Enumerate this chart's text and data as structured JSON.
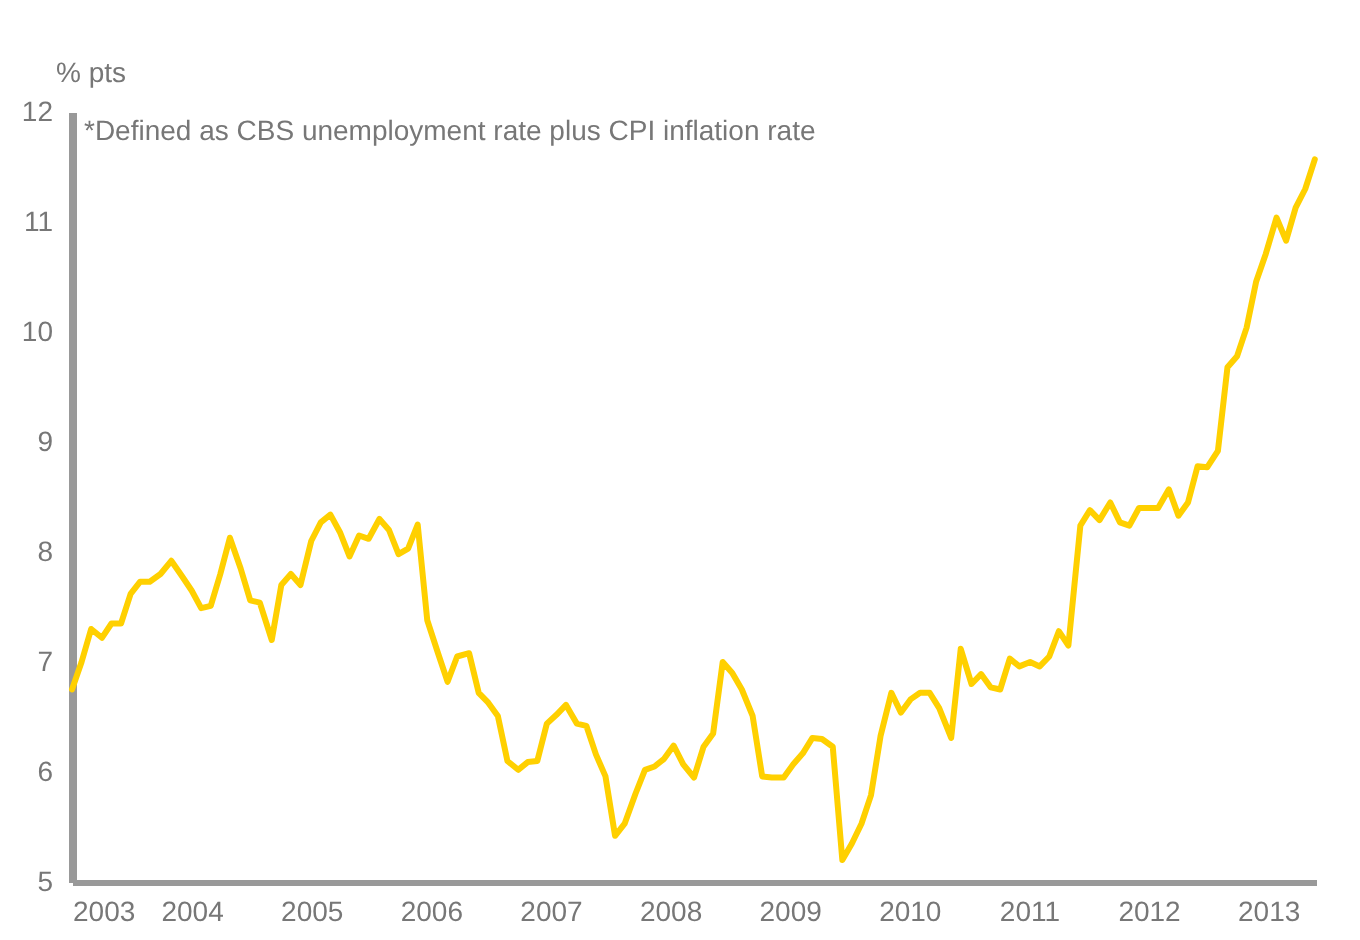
{
  "chart_data": {
    "type": "line",
    "ylabel": "% pts",
    "annotations": [
      "*Defined as CBS unemployment rate plus CPI inflation rate"
    ],
    "x": [
      2003.0,
      2003.08,
      2003.16,
      2003.25,
      2003.33,
      2003.41,
      2003.49,
      2003.57,
      2003.65,
      2003.74,
      2003.83,
      2003.92,
      2004.0,
      2004.08,
      2004.16,
      2004.24,
      2004.32,
      2004.41,
      2004.49,
      2004.57,
      2004.67,
      2004.75,
      2004.83,
      2004.91,
      2005.0,
      2005.08,
      2005.16,
      2005.24,
      2005.32,
      2005.4,
      2005.48,
      2005.57,
      2005.65,
      2005.73,
      2005.81,
      2005.89,
      2005.97,
      2006.06,
      2006.14,
      2006.22,
      2006.32,
      2006.4,
      2006.48,
      2006.56,
      2006.64,
      2006.73,
      2006.81,
      2006.89,
      2006.97,
      2007.05,
      2007.13,
      2007.22,
      2007.3,
      2007.38,
      2007.46,
      2007.54,
      2007.62,
      2007.71,
      2007.79,
      2007.87,
      2007.95,
      2008.03,
      2008.11,
      2008.2,
      2008.28,
      2008.36,
      2008.44,
      2008.52,
      2008.6,
      2008.69,
      2008.77,
      2008.85,
      2008.95,
      2009.03,
      2009.11,
      2009.19,
      2009.27,
      2009.36,
      2009.44,
      2009.52,
      2009.6,
      2009.68,
      2009.76,
      2009.85,
      2009.93,
      2010.01,
      2010.09,
      2010.17,
      2010.25,
      2010.35,
      2010.43,
      2010.52,
      2010.6,
      2010.68,
      2010.76,
      2010.84,
      2010.92,
      2011.01,
      2011.09,
      2011.17,
      2011.25,
      2011.33,
      2011.43,
      2011.51,
      2011.59,
      2011.68,
      2011.76,
      2011.84,
      2011.92,
      2012.0,
      2012.08,
      2012.17,
      2012.25,
      2012.33,
      2012.41,
      2012.49,
      2012.58,
      2012.66,
      2012.74,
      2012.82,
      2012.9,
      2012.98,
      2013.07,
      2013.15,
      2013.23,
      2013.31,
      2013.39
    ],
    "series": [
      {
        "color": "#ffd000",
        "values": [
          6.75,
          7.0,
          7.3,
          7.22,
          7.35,
          7.35,
          7.62,
          7.73,
          7.73,
          7.8,
          7.92,
          7.78,
          7.65,
          7.49,
          7.51,
          7.8,
          8.13,
          7.85,
          7.56,
          7.54,
          7.2,
          7.7,
          7.8,
          7.7,
          8.1,
          8.27,
          8.34,
          8.18,
          7.96,
          8.15,
          8.12,
          8.3,
          8.2,
          7.98,
          8.03,
          8.25,
          7.38,
          7.08,
          6.82,
          7.05,
          7.08,
          6.72,
          6.63,
          6.51,
          6.1,
          6.02,
          6.09,
          6.1,
          6.44,
          6.52,
          6.61,
          6.44,
          6.42,
          6.16,
          5.96,
          5.42,
          5.53,
          5.8,
          6.02,
          6.05,
          6.12,
          6.24,
          6.07,
          5.95,
          6.23,
          6.35,
          7.0,
          6.9,
          6.75,
          6.51,
          5.96,
          5.95,
          5.95,
          6.07,
          6.17,
          6.31,
          6.3,
          6.23,
          5.2,
          5.35,
          5.53,
          5.79,
          6.33,
          6.72,
          6.54,
          6.66,
          6.72,
          6.72,
          6.58,
          6.31,
          7.12,
          6.8,
          6.89,
          6.77,
          6.75,
          7.03,
          6.96,
          7.0,
          6.96,
          7.05,
          7.28,
          7.15,
          8.24,
          8.38,
          8.29,
          8.45,
          8.27,
          8.24,
          8.4,
          8.4,
          8.4,
          8.57,
          8.33,
          8.45,
          8.78,
          8.77,
          8.92,
          9.68,
          9.78,
          10.04,
          10.46,
          10.71,
          11.04,
          10.83,
          11.13,
          11.3,
          11.57
        ]
      }
    ],
    "xlim": [
      2003,
      2013.4
    ],
    "xticks": [
      2003,
      2004,
      2005,
      2006,
      2007,
      2008,
      2009,
      2010,
      2011,
      2012,
      2013
    ],
    "ylim": [
      5,
      12
    ],
    "yticks": [
      5,
      6,
      7,
      8,
      9,
      10,
      11,
      12
    ],
    "grid": false,
    "marker": "none",
    "line_style": "solid"
  }
}
